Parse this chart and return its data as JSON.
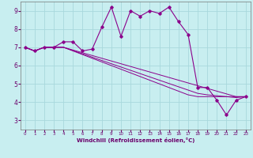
{
  "xlabel": "Windchill (Refroidissement éolien,°C)",
  "xlim": [
    -0.5,
    23.5
  ],
  "ylim": [
    2.5,
    9.5
  ],
  "xticks": [
    0,
    1,
    2,
    3,
    4,
    5,
    6,
    7,
    8,
    9,
    10,
    11,
    12,
    13,
    14,
    15,
    16,
    17,
    18,
    19,
    20,
    21,
    22,
    23
  ],
  "yticks": [
    3,
    4,
    5,
    6,
    7,
    8,
    9
  ],
  "bg_color": "#c8eef0",
  "grid_color": "#a8d8dc",
  "line_color": "#8b008b",
  "main_curve": [
    7.0,
    6.8,
    7.0,
    7.0,
    7.3,
    7.3,
    6.8,
    6.9,
    8.1,
    9.2,
    7.6,
    9.0,
    8.7,
    9.0,
    8.85,
    9.2,
    8.4,
    7.7,
    4.8,
    4.8,
    4.1,
    3.3,
    4.1,
    4.3
  ],
  "flat_curves": [
    [
      7.0,
      6.8,
      7.0,
      7.0,
      7.0,
      6.85,
      6.7,
      6.55,
      6.4,
      6.25,
      6.1,
      5.95,
      5.8,
      5.65,
      5.5,
      5.35,
      5.2,
      5.05,
      4.9,
      4.75,
      4.6,
      4.45,
      4.3,
      4.3
    ],
    [
      7.0,
      6.8,
      7.0,
      7.0,
      7.0,
      6.82,
      6.64,
      6.46,
      6.28,
      6.1,
      5.92,
      5.74,
      5.56,
      5.38,
      5.2,
      5.02,
      4.84,
      4.66,
      4.48,
      4.4,
      4.35,
      4.3,
      4.25,
      4.3
    ],
    [
      7.0,
      6.8,
      7.0,
      7.0,
      7.0,
      6.8,
      6.6,
      6.4,
      6.2,
      6.0,
      5.8,
      5.6,
      5.4,
      5.2,
      5.0,
      4.8,
      4.6,
      4.4,
      4.3,
      4.3,
      4.3,
      4.3,
      4.3,
      4.3
    ]
  ],
  "xlabel_color": "#6b006b",
  "tick_color": "#6b006b"
}
